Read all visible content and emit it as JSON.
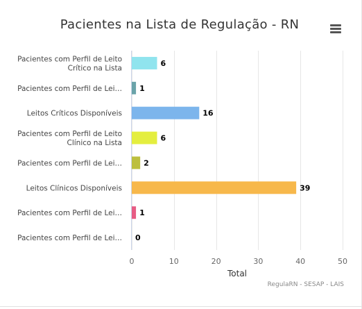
{
  "chart_data": {
    "type": "bar",
    "orientation": "horizontal",
    "title": "Pacientes na Lista de Regulação - RN",
    "xlabel": "Total",
    "credits": "RegulaRN - SESAP - LAIS",
    "categories": [
      "Pacientes com Perfil de Leito Crítico na Lista",
      "Pacientes com Perfil de Lei…",
      "Leitos Críticos Disponíveis",
      "Pacientes com Perfil de Leito Clínico na Lista",
      "Pacientes com Perfil de Lei…",
      "Leitos Clínicos Disponíveis",
      "Pacientes com Perfil de Lei…",
      "Pacientes com Perfil de Lei…"
    ],
    "values": [
      6,
      1,
      16,
      6,
      2,
      39,
      1,
      0
    ],
    "colors": [
      "#90e4ee",
      "#6aa3a9",
      "#7cb5ec",
      "#e4ee3f",
      "#bcbf3e",
      "#f7b84b",
      "#e75c84",
      "#cccccc"
    ],
    "xlim": [
      0,
      50
    ],
    "xticks": [
      0,
      10,
      20,
      30,
      40,
      50
    ],
    "grid": true,
    "legend": "none"
  },
  "menu": {
    "icon": "hamburger-menu-icon"
  }
}
